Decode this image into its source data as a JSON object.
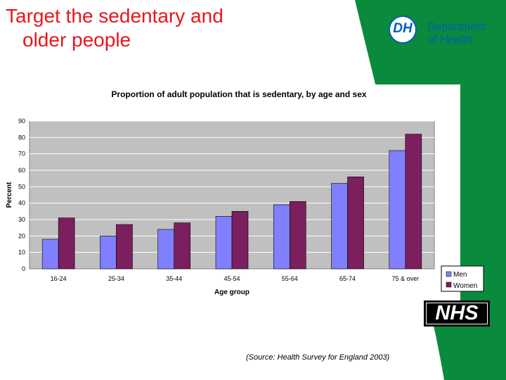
{
  "slide": {
    "title_line1": "Target the sedentary and",
    "title_line2": "older people",
    "title_color": "#e8161c",
    "source_note": "(Source: Health Survey for England 2003)"
  },
  "dh_logo": {
    "mark": "DH",
    "line1": "Department",
    "line2": "of Health",
    "color": "#005eb8"
  },
  "nhs_logo": {
    "text": "NHS"
  },
  "theme": {
    "green": "#0a8a3c"
  },
  "chart_data": {
    "type": "bar",
    "title": "Proportion of adult population that is sedentary, by age and sex",
    "xlabel": "Age group",
    "ylabel": "Percent",
    "categories": [
      "16-24",
      "25-34",
      "35-44",
      "45-54",
      "55-64",
      "65-74",
      "75 & over"
    ],
    "series": [
      {
        "name": "Men",
        "color": "#8080ff",
        "values": [
          18,
          20,
          24,
          32,
          39,
          52,
          72
        ]
      },
      {
        "name": "Women",
        "color": "#7b1f5f",
        "values": [
          31,
          27,
          28,
          35,
          41,
          56,
          82
        ]
      }
    ],
    "ylim": [
      0,
      90
    ],
    "yticks": [
      0,
      10,
      20,
      30,
      40,
      50,
      60,
      70,
      80,
      90
    ],
    "grid": true,
    "plot_background": "#c0c0c0",
    "legend": "right"
  }
}
